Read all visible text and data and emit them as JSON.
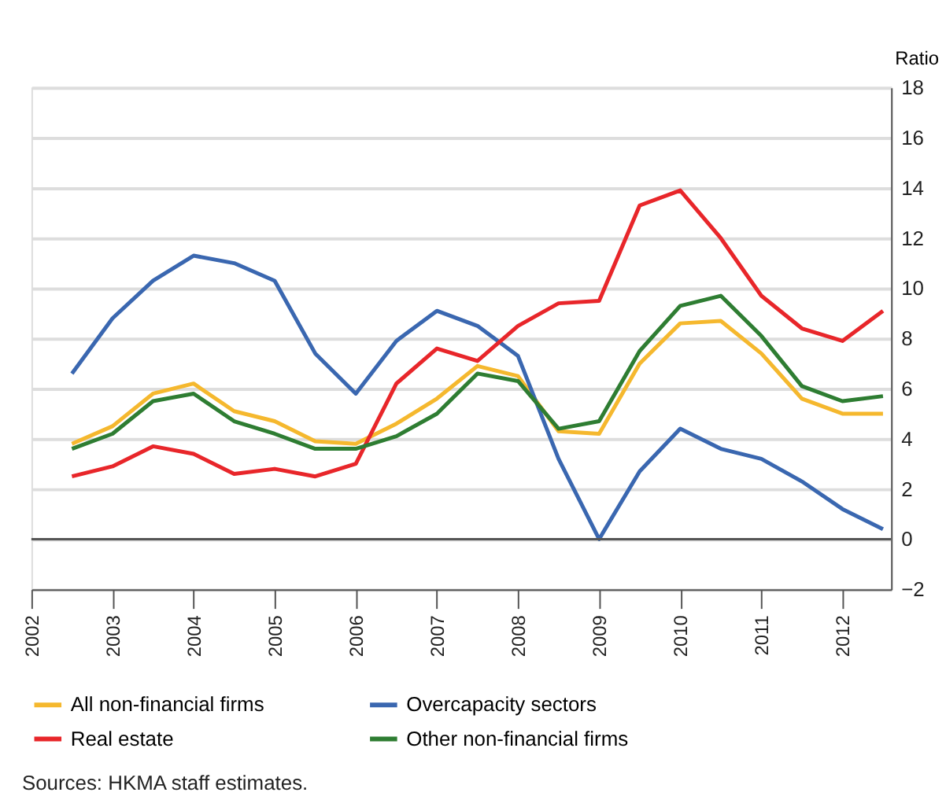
{
  "chart_data": {
    "type": "line",
    "x": [
      2002.5,
      2003,
      2003.5,
      2004,
      2004.5,
      2005,
      2005.5,
      2006,
      2006.5,
      2007,
      2007.5,
      2008,
      2008.5,
      2009,
      2009.5,
      2010,
      2010.5,
      2011,
      2011.5,
      2012,
      2012.5
    ],
    "series": [
      {
        "name": "All non-financial firms",
        "color": "#f5b82e",
        "values": [
          3.8,
          4.5,
          5.8,
          6.2,
          5.1,
          4.7,
          3.9,
          3.8,
          4.6,
          5.6,
          6.9,
          6.5,
          4.3,
          4.2,
          7.0,
          8.6,
          8.7,
          7.4,
          5.6,
          5.0,
          5.0
        ]
      },
      {
        "name": "Overcapacity sectors",
        "color": "#3a67b0",
        "values": [
          6.6,
          8.8,
          10.3,
          11.3,
          11.0,
          10.3,
          7.4,
          5.8,
          7.9,
          9.1,
          8.5,
          7.3,
          3.2,
          0.0,
          2.7,
          4.4,
          3.6,
          3.2,
          2.3,
          1.2,
          0.4
        ]
      },
      {
        "name": "Real estate",
        "color": "#e8262a",
        "values": [
          2.5,
          2.9,
          3.7,
          3.4,
          2.6,
          2.8,
          2.5,
          3.0,
          6.2,
          7.6,
          7.1,
          8.5,
          9.4,
          9.5,
          13.3,
          13.9,
          12.0,
          9.7,
          8.4,
          7.9,
          9.1
        ]
      },
      {
        "name": "Other non-financial firms",
        "color": "#2e7d32",
        "values": [
          3.6,
          4.2,
          5.5,
          5.8,
          4.7,
          4.2,
          3.6,
          3.6,
          4.1,
          5.0,
          6.6,
          6.3,
          4.4,
          4.7,
          7.5,
          9.3,
          9.7,
          8.1,
          6.1,
          5.5,
          5.7
        ]
      }
    ],
    "ylabel": "Ratio",
    "xlim": [
      2002,
      2012.6
    ],
    "xticks": [
      2002,
      2003,
      2004,
      2005,
      2006,
      2007,
      2008,
      2009,
      2010,
      2011,
      2012
    ],
    "ylim": [
      -2,
      18
    ],
    "yticks": [
      -2,
      0,
      2,
      4,
      6,
      8,
      10,
      12,
      14,
      16,
      18
    ],
    "ref_lines": [
      {
        "axis": "y",
        "value": 0,
        "color": "#555555"
      }
    ],
    "grid": "y",
    "legend": "bottom",
    "marker": "none",
    "line_style": "solid",
    "annotations": [
      "Sources: HKMA staff estimates."
    ]
  }
}
